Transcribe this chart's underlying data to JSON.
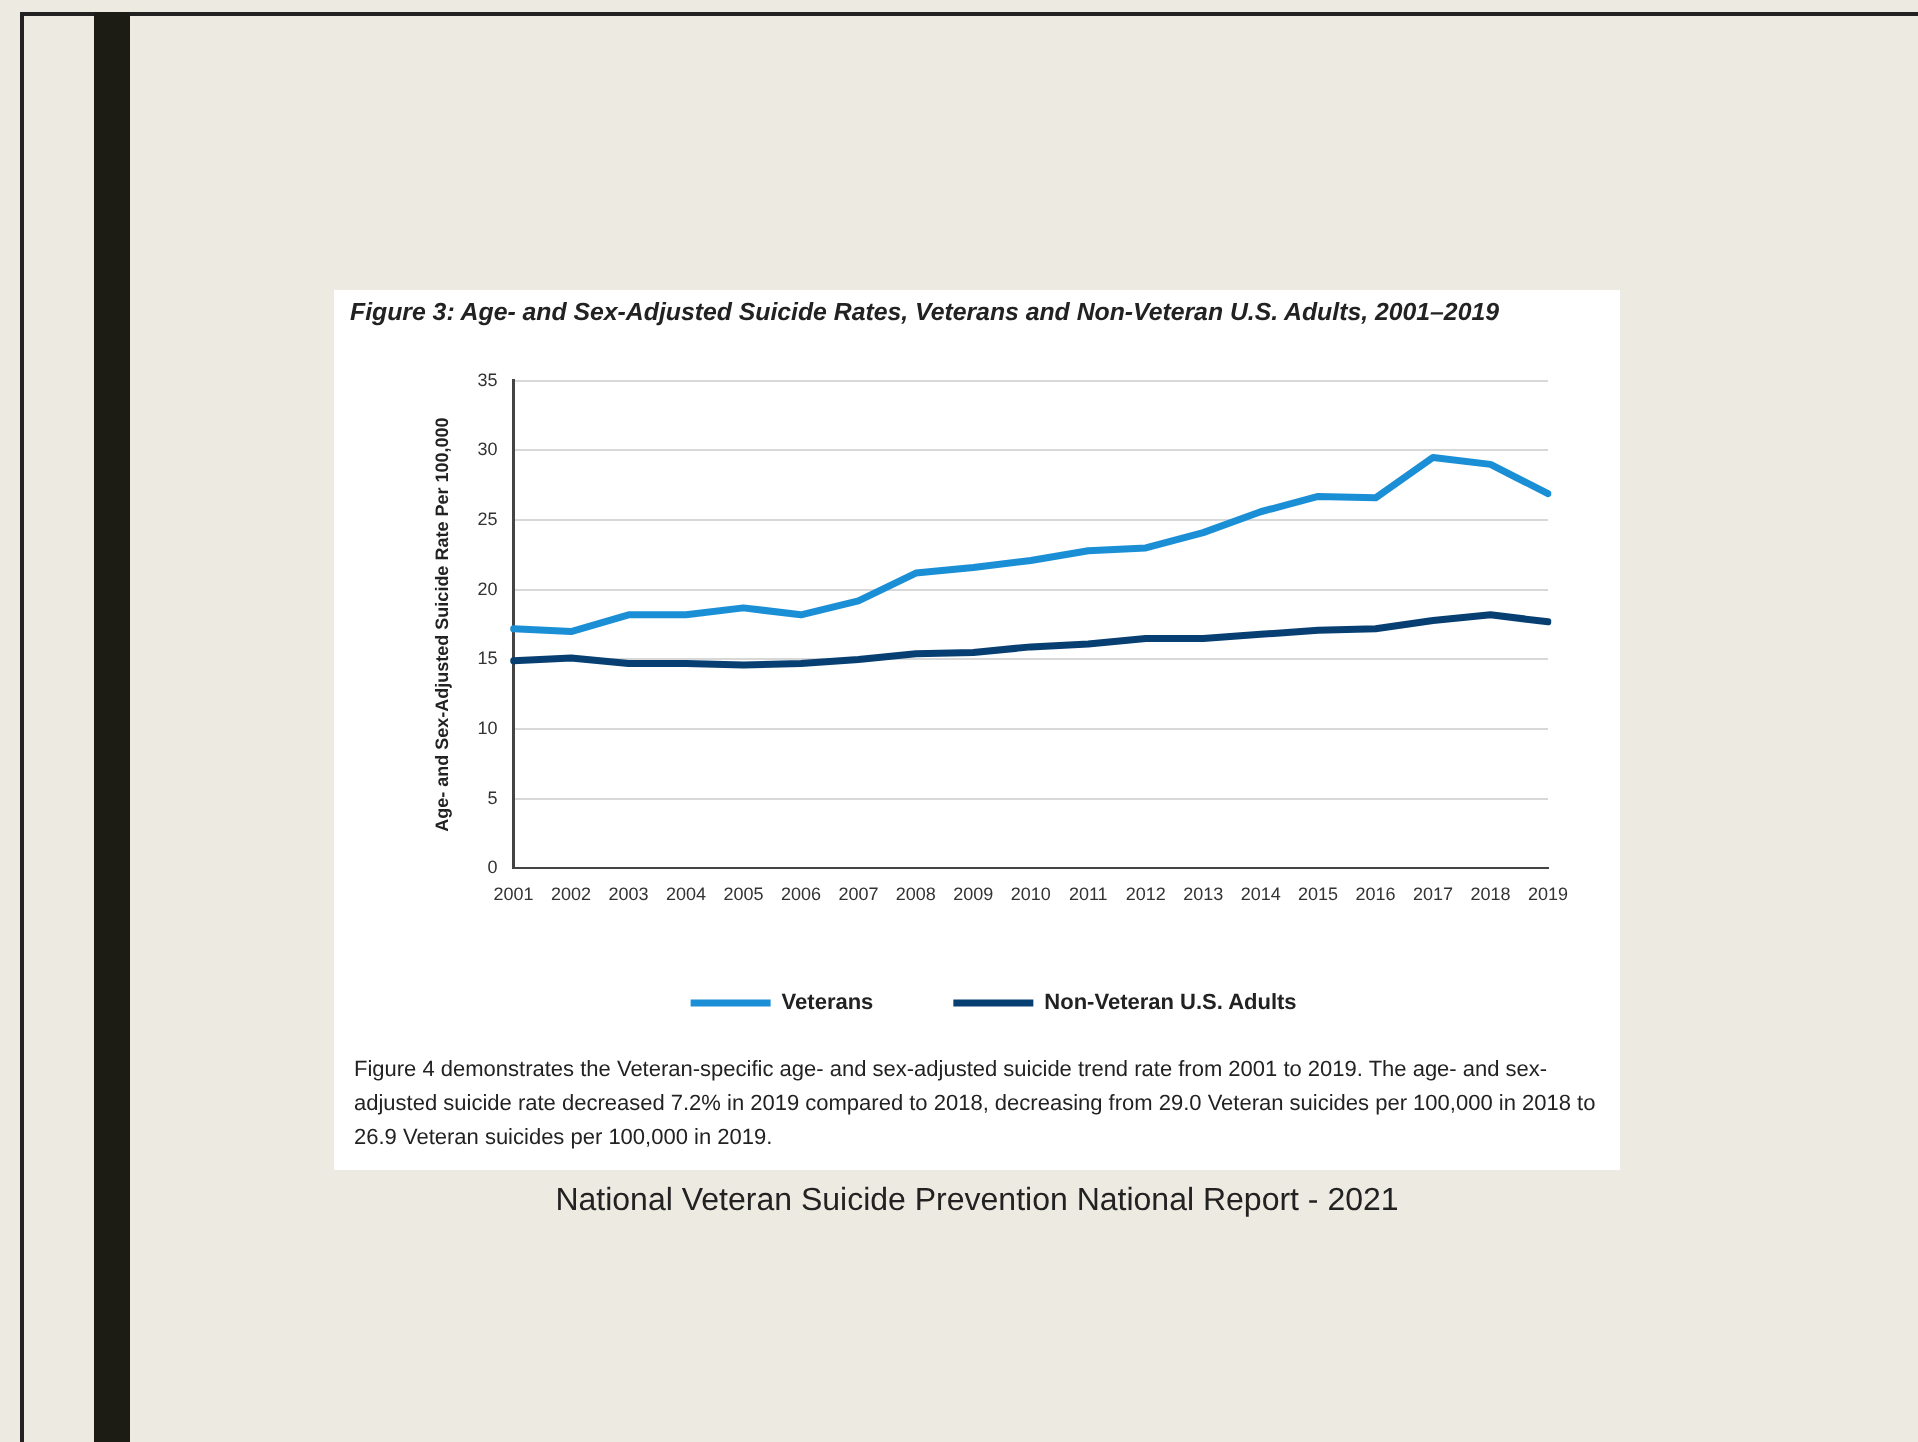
{
  "chart_data": {
    "type": "line",
    "title": "Figure 3: Age- and Sex-Adjusted Suicide Rates, Veterans and Non-Veteran U.S. Adults, 2001–2019",
    "ylabel": "Age- and Sex-Adjusted Suicide Rate Per 100,000",
    "categories": [
      "2001",
      "2002",
      "2003",
      "2004",
      "2005",
      "2006",
      "2007",
      "2008",
      "2009",
      "2010",
      "2011",
      "2012",
      "2013",
      "2014",
      "2015",
      "2016",
      "2017",
      "2018",
      "2019"
    ],
    "series": [
      {
        "name": "Veterans",
        "color": "#1b8fd6",
        "values": [
          17.2,
          17.0,
          18.2,
          18.2,
          18.7,
          18.2,
          19.2,
          21.2,
          21.6,
          22.1,
          22.8,
          23.0,
          24.1,
          25.6,
          26.7,
          26.6,
          29.5,
          29.0,
          26.9
        ]
      },
      {
        "name": "Non-Veteran U.S. Adults",
        "color": "#073f72",
        "values": [
          14.9,
          15.1,
          14.7,
          14.7,
          14.6,
          14.7,
          15.0,
          15.4,
          15.5,
          15.9,
          16.1,
          16.5,
          16.5,
          16.8,
          17.1,
          17.2,
          17.8,
          18.2,
          17.7
        ]
      }
    ],
    "ylim": [
      0,
      35
    ],
    "yticks": [
      0,
      5,
      10,
      15,
      20,
      25,
      30,
      35
    ],
    "grid": "y",
    "legend": "bottom",
    "marker": "none",
    "line_style": "solid",
    "annotations": [
      "Figure 4 demonstrates the Veteran-specific age- and sex-adjusted suicide trend rate from 2001 to 2019. The age- and sex-adjusted suicide rate decreased 7.2% in 2019 compared to 2018, decreasing from 29.0 Veteran suicides per 100,000 in 2018 to 26.9 Veteran suicides per 100,000 in 2019.",
      "National Veteran Suicide Prevention National Report - 2021"
    ]
  }
}
